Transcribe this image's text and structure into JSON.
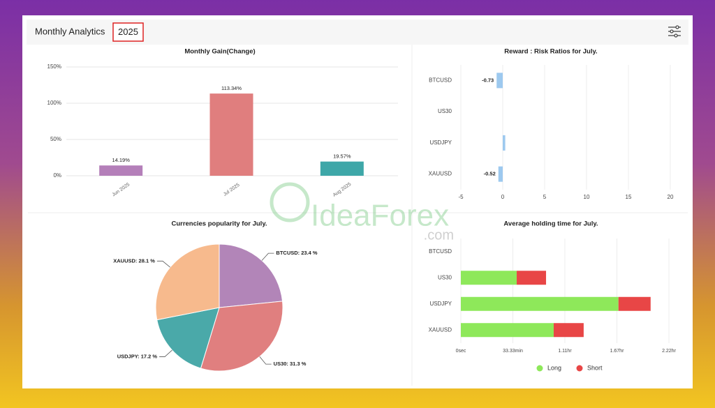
{
  "header": {
    "title": "Monthly Analytics",
    "year": "2025"
  },
  "watermark": {
    "brand": "IdeaForex",
    "domain": ".com"
  },
  "chart_data": [
    {
      "type": "bar",
      "title": "Monthly Gain(Change)",
      "categories": [
        "Jun 2025",
        "Jul 2025",
        "Aug 2025"
      ],
      "values": [
        14.19,
        113.34,
        19.57
      ],
      "value_labels": [
        "14.19%",
        "113.34%",
        "19.57%"
      ],
      "colors": [
        "#b47fb9",
        "#e07e7e",
        "#3ea7a8"
      ],
      "ylim": [
        0,
        150
      ],
      "yticks": [
        {
          "value": 0,
          "label": "0%"
        },
        {
          "value": 50,
          "label": "50%"
        },
        {
          "value": 100,
          "label": "100%"
        },
        {
          "value": 150,
          "label": "150%"
        }
      ],
      "grid": true
    },
    {
      "type": "hbar",
      "title": "Reward : Risk Ratios for July.",
      "categories": [
        "BTCUSD",
        "US30",
        "USDJPY",
        "XAUUSD"
      ],
      "values": [
        -0.73,
        0,
        0.3,
        -0.52
      ],
      "value_labels": [
        "-0.73",
        null,
        null,
        "-0.52"
      ],
      "color": "#9dc9ef",
      "xlim": [
        -5,
        20
      ],
      "xticks": [
        -5,
        0,
        5,
        10,
        15,
        20
      ],
      "grid": true
    },
    {
      "type": "pie",
      "title": "Currencies popularity for July.",
      "values": [
        23.4,
        31.3,
        17.2,
        28.1
      ],
      "value_labels": [
        "BTCUSD: 23.4 %",
        "US30: 31.3 %",
        "USDJPY: 17.2 %",
        "XAUUSD: 28.1 %"
      ],
      "colors": [
        "#b285b8",
        "#e07f7f",
        "#4aa9a9",
        "#f7ba8d"
      ]
    },
    {
      "type": "stacked_hbar",
      "title": "Average holding time for July.",
      "categories": [
        "BTCUSD",
        "US30",
        "USDJPY",
        "XAUUSD"
      ],
      "series": [
        {
          "name": "Long",
          "color": "#8ee85a",
          "values": [
            0,
            35.8,
            101,
            59.5
          ]
        },
        {
          "name": "Short",
          "color": "#e84646",
          "values": [
            0,
            18.8,
            20.6,
            19.2
          ]
        }
      ],
      "xlim": [
        0,
        133.33
      ],
      "xticks": [
        {
          "value": 0,
          "label": "0sec"
        },
        {
          "value": 33.33,
          "label": "33.33min"
        },
        {
          "value": 66.67,
          "label": "1.11hr"
        },
        {
          "value": 100,
          "label": "1.67hr"
        },
        {
          "value": 133.33,
          "label": "2.22hr"
        }
      ],
      "grid": true,
      "legend": "bottom"
    }
  ]
}
